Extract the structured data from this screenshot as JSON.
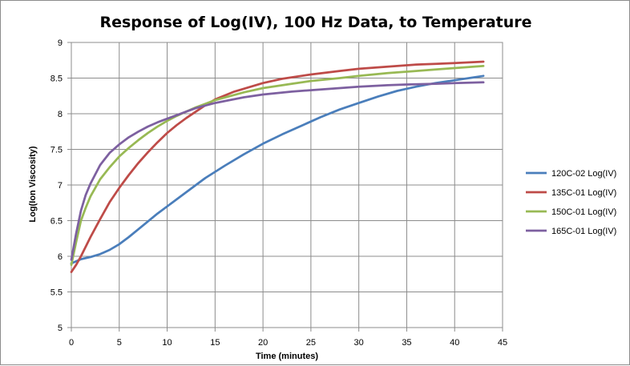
{
  "chart_data": {
    "type": "line",
    "title": "Response of Log(IV), 100 Hz Data, to Temperature",
    "xlabel": "Time (minutes)",
    "ylabel": "Log(Ion Viscosity)",
    "xlim": [
      0,
      45
    ],
    "ylim": [
      5,
      9
    ],
    "xticks": [
      "0",
      "5",
      "10",
      "15",
      "20",
      "25",
      "30",
      "35",
      "40",
      "45"
    ],
    "yticks": [
      "5",
      "5.5",
      "6",
      "6.5",
      "7",
      "7.5",
      "8",
      "8.5",
      "9"
    ],
    "grid": true,
    "legend_position": "right",
    "series": [
      {
        "name": "120C-02 Log(IV)",
        "color": "#4a7ebb",
        "x": [
          0,
          1,
          2,
          3,
          4,
          5,
          6,
          7,
          8,
          9,
          10,
          12,
          14,
          16,
          18,
          20,
          22,
          24,
          26,
          28,
          30,
          32,
          34,
          36,
          38,
          40,
          42,
          43
        ],
        "y": [
          5.9,
          5.96,
          5.99,
          6.03,
          6.09,
          6.17,
          6.27,
          6.38,
          6.49,
          6.6,
          6.7,
          6.9,
          7.1,
          7.27,
          7.43,
          7.58,
          7.71,
          7.83,
          7.95,
          8.06,
          8.15,
          8.24,
          8.32,
          8.38,
          8.43,
          8.47,
          8.51,
          8.53
        ]
      },
      {
        "name": "135C-01 Log(IV)",
        "color": "#be4b48",
        "x": [
          0,
          0.5,
          1,
          2,
          3,
          4,
          5,
          6,
          7,
          8,
          9,
          10,
          11,
          12,
          13,
          14,
          15,
          17,
          20,
          22,
          25,
          28,
          30,
          33,
          36,
          38,
          40,
          43
        ],
        "y": [
          5.78,
          5.88,
          6.0,
          6.27,
          6.52,
          6.76,
          6.96,
          7.14,
          7.31,
          7.46,
          7.6,
          7.73,
          7.84,
          7.94,
          8.03,
          8.12,
          8.2,
          8.31,
          8.43,
          8.49,
          8.55,
          8.6,
          8.63,
          8.66,
          8.69,
          8.7,
          8.71,
          8.73
        ]
      },
      {
        "name": "150C-01 Log(IV)",
        "color": "#98b954",
        "x": [
          0,
          0.5,
          1,
          1.5,
          2,
          3,
          4,
          5,
          6,
          7,
          8,
          9,
          10,
          11,
          12,
          13,
          15,
          18,
          20,
          23,
          25,
          28,
          30,
          33,
          35,
          38,
          40,
          43
        ],
        "y": [
          5.88,
          6.2,
          6.5,
          6.68,
          6.84,
          7.08,
          7.25,
          7.4,
          7.52,
          7.63,
          7.73,
          7.82,
          7.9,
          7.97,
          8.03,
          8.09,
          8.19,
          8.3,
          8.36,
          8.42,
          8.46,
          8.5,
          8.53,
          8.57,
          8.59,
          8.62,
          8.64,
          8.67
        ]
      },
      {
        "name": "165C-01 Log(IV)",
        "color": "#7d60a0",
        "x": [
          0,
          0.5,
          1,
          1.5,
          2,
          3,
          4,
          5,
          6,
          7,
          8,
          9,
          10,
          11,
          12,
          13,
          15,
          18,
          20,
          23,
          25,
          28,
          30,
          33,
          35,
          38,
          40,
          43
        ],
        "y": [
          5.95,
          6.32,
          6.64,
          6.86,
          7.02,
          7.28,
          7.45,
          7.57,
          7.67,
          7.75,
          7.82,
          7.88,
          7.93,
          7.98,
          8.03,
          8.08,
          8.15,
          8.23,
          8.27,
          8.31,
          8.33,
          8.36,
          8.38,
          8.4,
          8.41,
          8.42,
          8.43,
          8.44
        ]
      }
    ]
  }
}
